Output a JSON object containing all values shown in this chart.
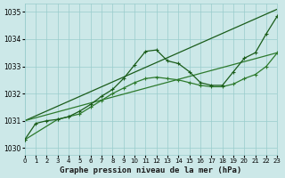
{
  "title": "Graphe pression niveau de la mer (hPa)",
  "bg_color": "#cce8e8",
  "grid_color": "#99cccc",
  "line_color_dark": "#1a5c1a",
  "line_color_mid": "#2d7a2d",
  "xlim": [
    0,
    23
  ],
  "ylim": [
    1029.75,
    1035.3
  ],
  "yticks": [
    1030,
    1031,
    1032,
    1033,
    1034,
    1035
  ],
  "xticks": [
    0,
    1,
    2,
    3,
    4,
    5,
    6,
    7,
    8,
    9,
    10,
    11,
    12,
    13,
    14,
    15,
    16,
    17,
    18,
    19,
    20,
    21,
    22,
    23
  ],
  "series_curvy1": {
    "x": [
      0,
      1,
      2,
      3,
      4,
      5,
      6,
      7,
      8,
      9,
      10,
      11,
      12,
      13,
      14,
      15,
      16,
      17,
      18,
      19,
      20,
      21,
      22,
      23
    ],
    "y": [
      1030.3,
      1030.9,
      1031.0,
      1031.05,
      1031.15,
      1031.35,
      1031.6,
      1031.9,
      1032.15,
      1032.55,
      1033.05,
      1033.55,
      1033.6,
      1033.2,
      1033.1,
      1032.8,
      1032.4,
      1032.3,
      1032.3,
      1032.8,
      1033.3,
      1033.5,
      1034.2,
      1034.85
    ]
  },
  "series_curvy2": {
    "x": [
      0,
      3,
      4,
      5,
      6,
      7,
      8,
      9,
      10,
      11,
      12,
      13,
      14,
      15,
      16,
      17,
      18,
      19,
      20,
      21,
      22,
      23
    ],
    "y": [
      1030.3,
      1031.05,
      1031.15,
      1031.25,
      1031.5,
      1031.75,
      1032.0,
      1032.2,
      1032.4,
      1032.55,
      1032.6,
      1032.55,
      1032.5,
      1032.4,
      1032.3,
      1032.25,
      1032.25,
      1032.35,
      1032.55,
      1032.7,
      1033.0,
      1033.5
    ]
  },
  "series_straight1": {
    "x": [
      0,
      23
    ],
    "y": [
      1031.0,
      1035.1
    ]
  },
  "series_straight2": {
    "x": [
      0,
      23
    ],
    "y": [
      1031.0,
      1033.5
    ]
  },
  "title_fontsize": 6.5,
  "tick_fontsize": 5.5
}
